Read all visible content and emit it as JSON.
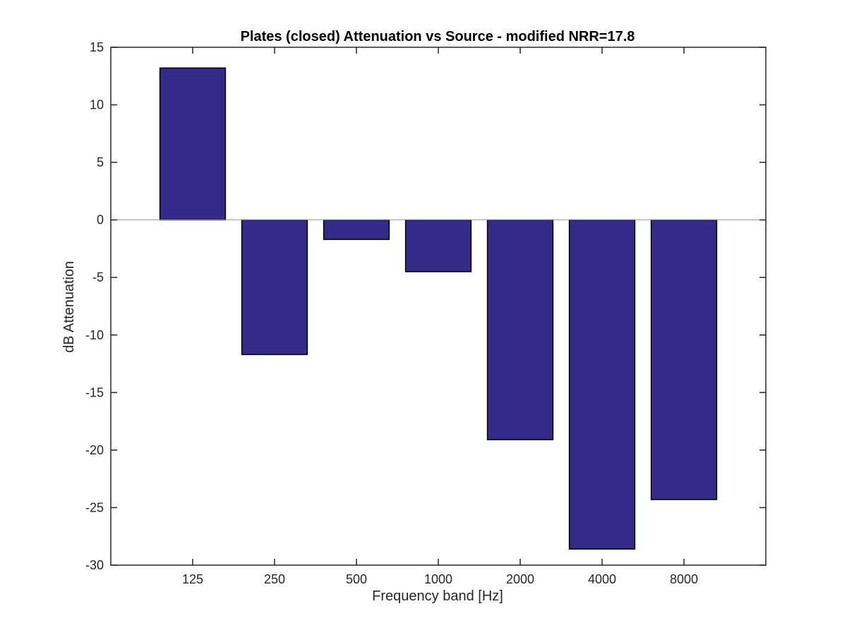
{
  "chart_data": {
    "type": "bar",
    "title": "Plates (closed) Attenuation vs Source - modified NRR=17.8",
    "xlabel": "Frequency band [Hz]",
    "ylabel": "dB Attenuation",
    "categories": [
      "125",
      "250",
      "500",
      "1000",
      "2000",
      "4000",
      "8000"
    ],
    "values": [
      13.2,
      -11.7,
      -1.7,
      -4.5,
      -19.1,
      -28.6,
      -24.3
    ],
    "ylim": [
      -30,
      15
    ],
    "yticks": [
      15,
      10,
      5,
      0,
      -5,
      -10,
      -15,
      -20,
      -25,
      -30
    ],
    "bar_color": "#352a87",
    "bar_edge_color": "#000000",
    "baseline": 0,
    "grid": false
  }
}
